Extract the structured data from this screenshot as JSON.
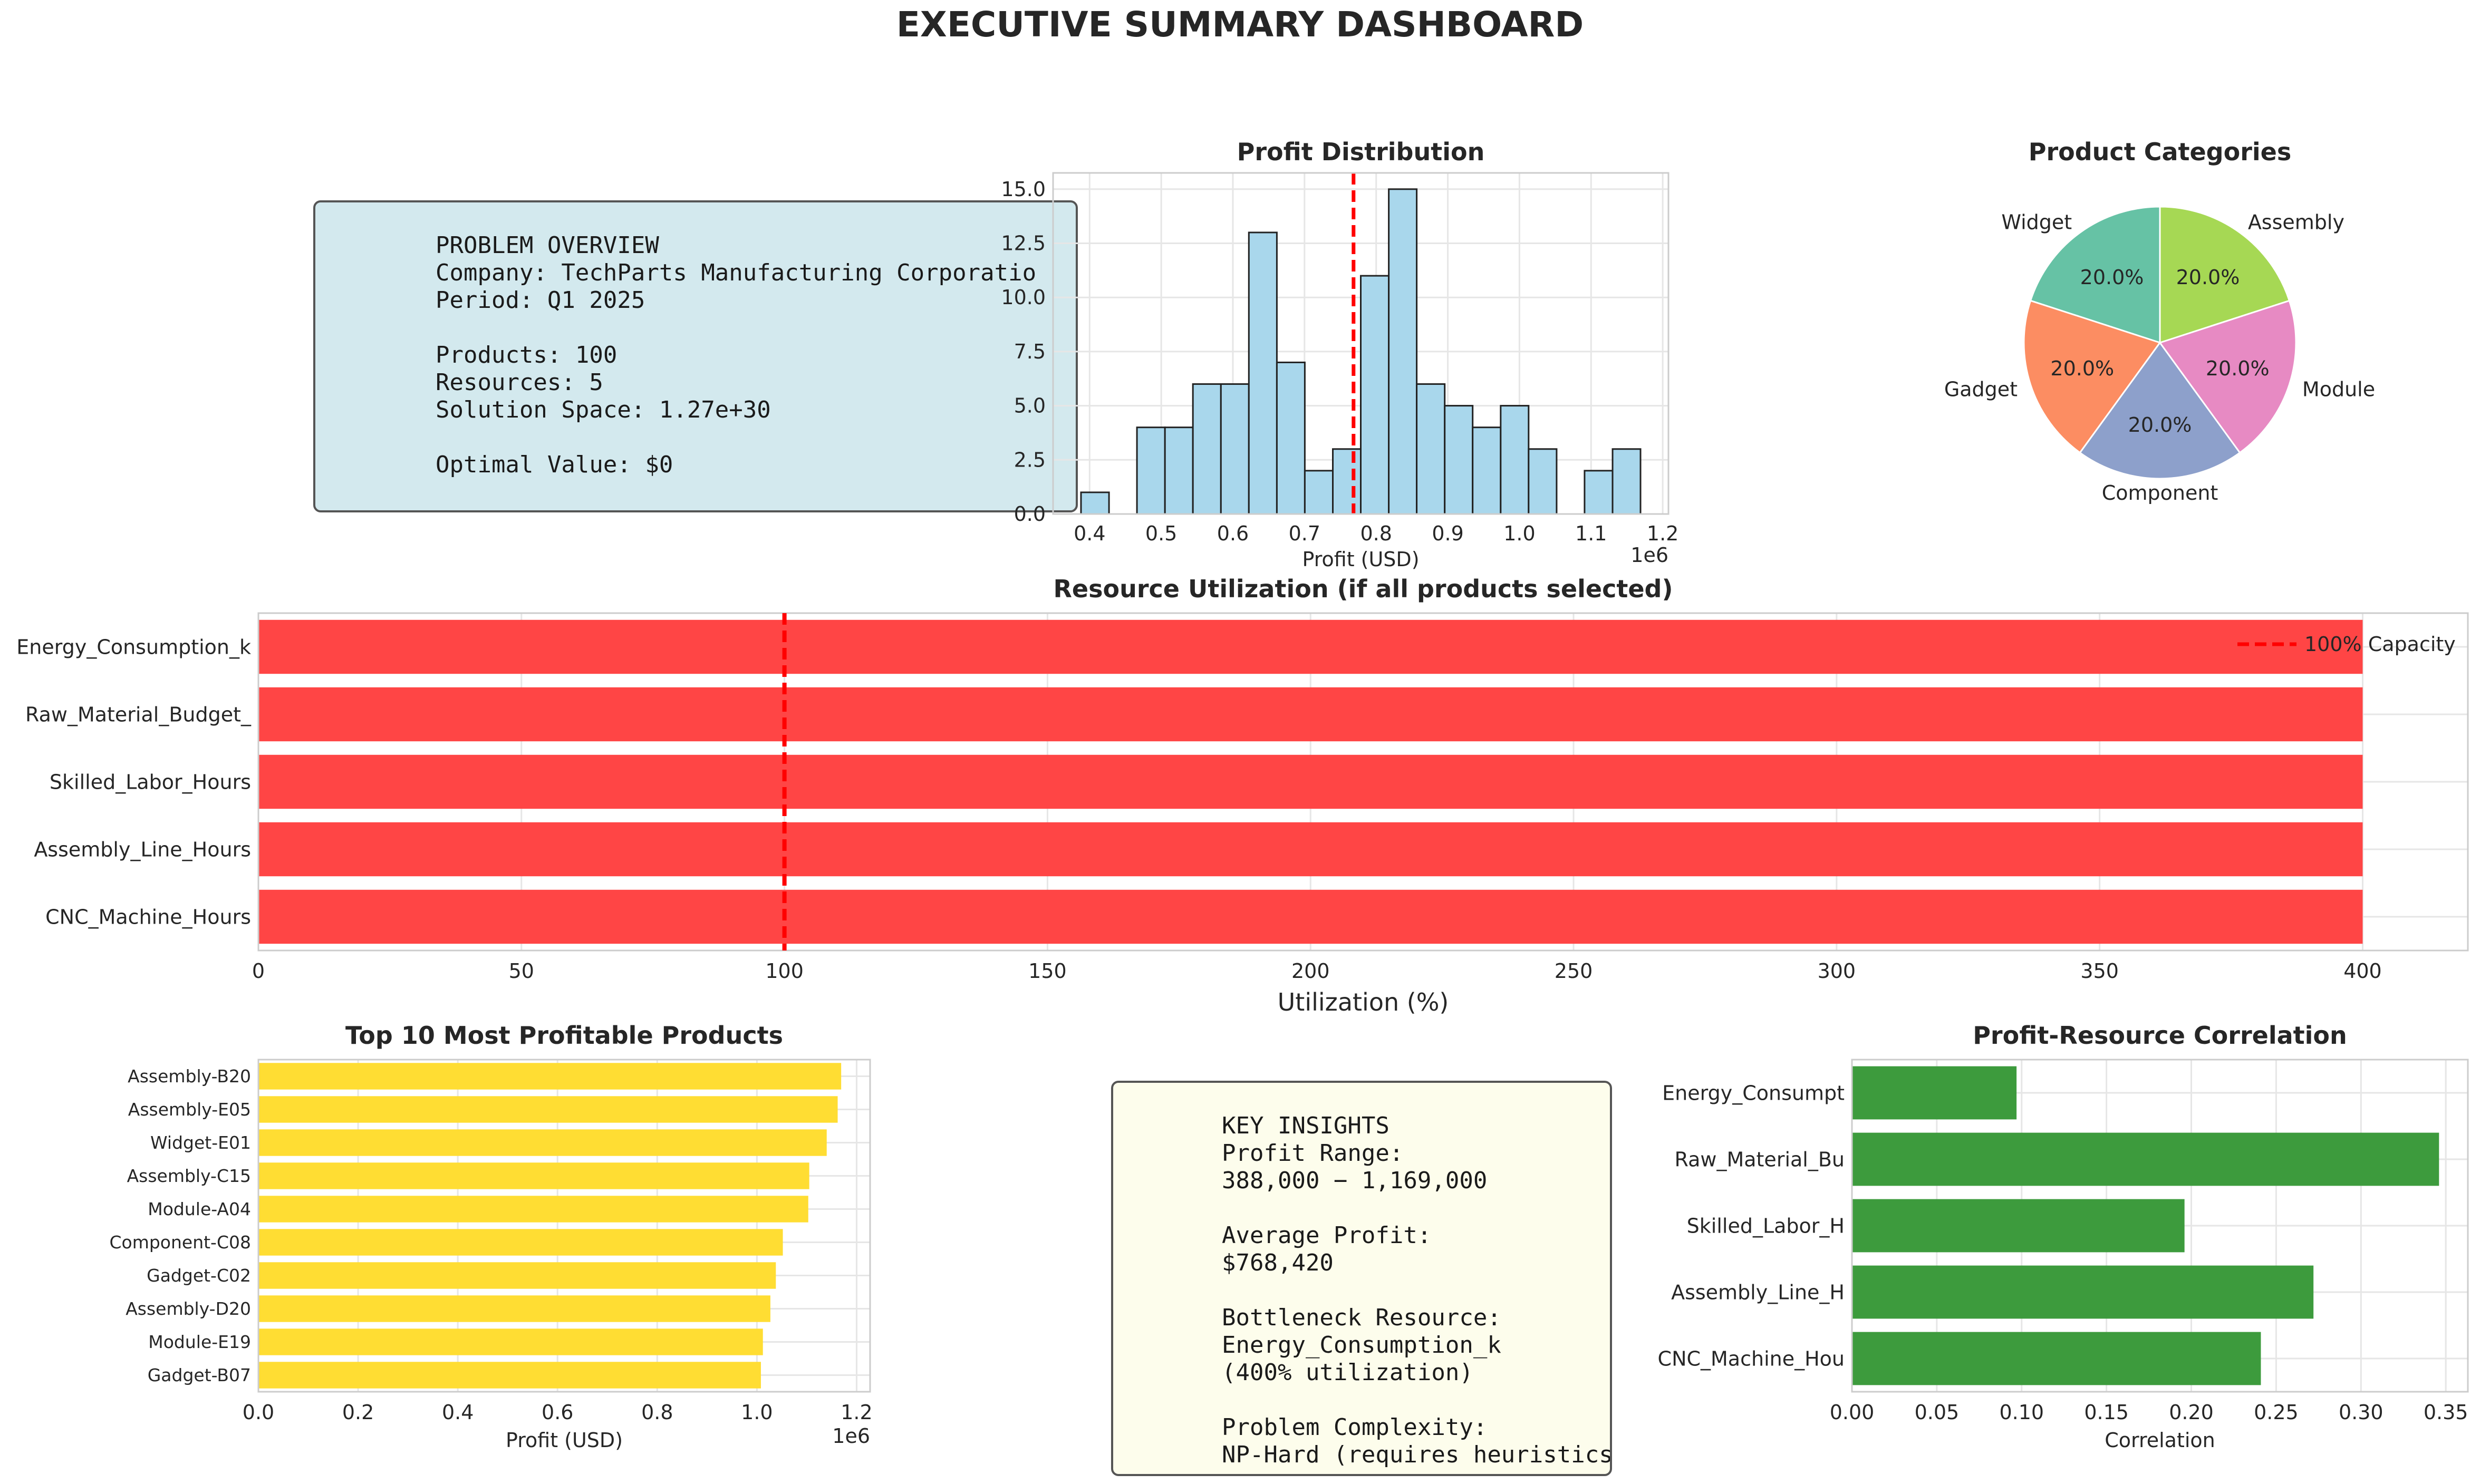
{
  "dashboard": {
    "title": "EXECUTIVE SUMMARY DASHBOARD"
  },
  "overview": {
    "lines": [
      "PROBLEM OVERVIEW",
      "Company: TechParts Manufacturing Corporatio",
      "Period: Q1 2025",
      "",
      "Products: 100",
      "Resources: 5",
      "Solution Space: 1.27e+30",
      "",
      "Optimal Value: $0"
    ]
  },
  "insights": {
    "lines": [
      "KEY INSIGHTS",
      "Profit Range:",
      "388,000 − 1,169,000",
      "",
      "Average Profit:",
      "$768,420",
      "",
      "Bottleneck Resource:",
      "Energy_Consumption_k",
      "(400% utilization)",
      "",
      "Problem Complexity:",
      "NP-Hard (requires heuristics)"
    ]
  },
  "colors": {
    "histogram": "#a9d7ec",
    "mean_line": "#ff0000",
    "utilization_bar": "#ff4545",
    "top_products_bar": "#ffdd33",
    "correlation_bar": "#3d9b3d",
    "pie": [
      "#66c2a5",
      "#fc8d62",
      "#8da0cb",
      "#e78ac3",
      "#a6d854"
    ]
  },
  "chart_data": [
    {
      "id": "histogram",
      "type": "bar",
      "title": "Profit Distribution",
      "xlabel": "Profit (USD)",
      "ylabel": "",
      "x_offset_label": "1e6",
      "bin_edges": [
        0.388,
        0.4271,
        0.4661,
        0.5052,
        0.5442,
        0.5833,
        0.6223,
        0.6614,
        0.7004,
        0.7395,
        0.7785,
        0.8176,
        0.8566,
        0.8957,
        0.9347,
        0.9738,
        1.0128,
        1.0519,
        1.0909,
        1.13,
        1.169
      ],
      "values": [
        1,
        0,
        4,
        4,
        6,
        6,
        13,
        7,
        2,
        3,
        11,
        15,
        6,
        5,
        4,
        5,
        3,
        0,
        2,
        3
      ],
      "mean": 0.76842,
      "xlim": [
        0.349,
        1.208
      ],
      "ylim": [
        0,
        15.75
      ],
      "xticks": [
        0.4,
        0.5,
        0.6,
        0.7,
        0.8,
        0.9,
        1.0,
        1.1,
        1.2
      ],
      "xtick_labels": [
        "0.4",
        "0.5",
        "0.6",
        "0.7",
        "0.8",
        "0.9",
        "1.0",
        "1.1",
        "1.2"
      ],
      "yticks": [
        0,
        2.5,
        5,
        7.5,
        10,
        12.5,
        15
      ],
      "ytick_labels": [
        "0.0",
        "2.5",
        "5.0",
        "7.5",
        "10.0",
        "12.5",
        "15.0"
      ],
      "grid": true
    },
    {
      "id": "pie",
      "type": "pie",
      "title": "Product Categories",
      "labels": [
        "Widget",
        "Gadget",
        "Component",
        "Module",
        "Assembly"
      ],
      "values": [
        20,
        20,
        20,
        20,
        20
      ],
      "pct_labels": [
        "20.0%",
        "20.0%",
        "20.0%",
        "20.0%",
        "20.0%"
      ],
      "start_angle": 90
    },
    {
      "id": "utilization",
      "type": "bar",
      "orientation": "horizontal",
      "title": "Resource Utilization (if all products selected)",
      "xlabel": "Utilization (%)",
      "categories": [
        "Energy_Consumption_k",
        "Raw_Material_Budget_",
        "Skilled_Labor_Hours",
        "Assembly_Line_Hours",
        "CNC_Machine_Hours"
      ],
      "values": [
        400,
        400,
        400,
        400,
        400
      ],
      "reference_line": 100,
      "legend": [
        "100% Capacity"
      ],
      "legend_position": "top-right",
      "xlim": [
        0,
        420
      ],
      "xticks": [
        0,
        50,
        100,
        150,
        200,
        250,
        300,
        350,
        400
      ],
      "grid": true
    },
    {
      "id": "top10",
      "type": "bar",
      "orientation": "horizontal",
      "title": "Top 10 Most Profitable Products",
      "xlabel": "Profit (USD)",
      "x_offset_label": "1e6",
      "categories": [
        "Assembly-B20",
        "Assembly-E05",
        "Widget-E01",
        "Assembly-C15",
        "Module-A04",
        "Component-C08",
        "Gadget-C02",
        "Assembly-D20",
        "Module-E19",
        "Gadget-B07"
      ],
      "values": [
        1.169,
        1.162,
        1.14,
        1.105,
        1.103,
        1.052,
        1.038,
        1.027,
        1.012,
        1.008
      ],
      "xlim": [
        0,
        1.227
      ],
      "xticks": [
        0,
        0.2,
        0.4,
        0.6,
        0.8,
        1.0,
        1.2
      ],
      "xtick_labels": [
        "0.0",
        "0.2",
        "0.4",
        "0.6",
        "0.8",
        "1.0",
        "1.2"
      ],
      "grid": true
    },
    {
      "id": "correlation",
      "type": "bar",
      "orientation": "horizontal",
      "title": "Profit-Resource Correlation",
      "xlabel": "Correlation",
      "categories": [
        "Energy_Consumpt",
        "Raw_Material_Bu",
        "Skilled_Labor_H",
        "Assembly_Line_H",
        "CNC_Machine_Hou"
      ],
      "values": [
        0.097,
        0.346,
        0.196,
        0.272,
        0.241
      ],
      "xlim": [
        0,
        0.363
      ],
      "xticks": [
        0,
        0.05,
        0.1,
        0.15,
        0.2,
        0.25,
        0.3,
        0.35
      ],
      "xtick_labels": [
        "0.00",
        "0.05",
        "0.10",
        "0.15",
        "0.20",
        "0.25",
        "0.30",
        "0.35"
      ],
      "grid": true
    }
  ]
}
